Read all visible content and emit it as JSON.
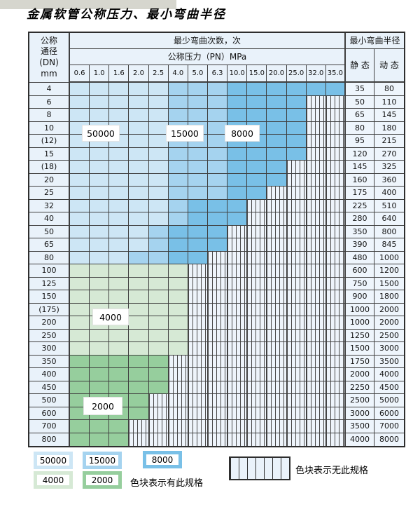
{
  "title": "金属软管公称压力、最小弯曲半径",
  "table": {
    "header": {
      "dn_lines": [
        "公称",
        "通径",
        "(DN)",
        "mm"
      ],
      "bend_cycles": "最少弯曲次数，次",
      "pressure": "公称压力（PN）MPa",
      "pressures": [
        "0.6",
        "1.0",
        "1.6",
        "2.0",
        "2.5",
        "4.0",
        "5.0",
        "6.3",
        "10.0",
        "15.0",
        "20.0",
        "25.0",
        "32.0",
        "35.0"
      ],
      "radius": "最小弯曲半径",
      "static_label": "静 态",
      "dynamic_label": "动 态"
    },
    "rows": [
      {
        "dn": "4",
        "static": "35",
        "dynamic": "80",
        "zone": "blue",
        "ext": 14,
        "light": 5,
        "med": 8
      },
      {
        "dn": "6",
        "static": "50",
        "dynamic": "110",
        "zone": "blue",
        "ext": 12,
        "light": 5,
        "med": 8
      },
      {
        "dn": "8",
        "static": "65",
        "dynamic": "145",
        "zone": "blue",
        "ext": 12,
        "light": 5,
        "med": 8
      },
      {
        "dn": "10",
        "static": "80",
        "dynamic": "180",
        "zone": "blue",
        "ext": 12,
        "light": 5,
        "med": 8
      },
      {
        "dn": "(12)",
        "static": "95",
        "dynamic": "215",
        "zone": "blue",
        "ext": 12,
        "light": 5,
        "med": 8
      },
      {
        "dn": "15",
        "static": "120",
        "dynamic": "270",
        "zone": "blue",
        "ext": 12,
        "light": 5,
        "med": 8
      },
      {
        "dn": "(18)",
        "static": "145",
        "dynamic": "325",
        "zone": "blue",
        "ext": 11,
        "light": 5,
        "med": 8
      },
      {
        "dn": "20",
        "static": "160",
        "dynamic": "360",
        "zone": "blue",
        "ext": 11,
        "light": 5,
        "med": 8
      },
      {
        "dn": "25",
        "static": "175",
        "dynamic": "400",
        "zone": "blue",
        "ext": 10,
        "light": 5,
        "med": 8
      },
      {
        "dn": "32",
        "static": "225",
        "dynamic": "510",
        "zone": "blue",
        "ext": 9,
        "light": 5,
        "med": 6
      },
      {
        "dn": "40",
        "static": "280",
        "dynamic": "640",
        "zone": "blue",
        "ext": 9,
        "light": 5,
        "med": 6
      },
      {
        "dn": "50",
        "static": "350",
        "dynamic": "800",
        "zone": "blue",
        "ext": 8,
        "light": 4,
        "med": 5
      },
      {
        "dn": "65",
        "static": "390",
        "dynamic": "845",
        "zone": "blue",
        "ext": 8,
        "light": 4,
        "med": 5
      },
      {
        "dn": "80",
        "static": "480",
        "dynamic": "1000",
        "zone": "blue",
        "ext": 7,
        "light": 3,
        "med": 5
      },
      {
        "dn": "100",
        "static": "600",
        "dynamic": "1200",
        "zone": "green-light",
        "ext": 6
      },
      {
        "dn": "125",
        "static": "750",
        "dynamic": "1500",
        "zone": "green-light",
        "ext": 6
      },
      {
        "dn": "150",
        "static": "900",
        "dynamic": "1800",
        "zone": "green-light",
        "ext": 6
      },
      {
        "dn": "(175)",
        "static": "1000",
        "dynamic": "2000",
        "zone": "green-light",
        "ext": 6
      },
      {
        "dn": "200",
        "static": "1000",
        "dynamic": "2000",
        "zone": "green-light",
        "ext": 6
      },
      {
        "dn": "250",
        "static": "1250",
        "dynamic": "2500",
        "zone": "green-light",
        "ext": 6
      },
      {
        "dn": "300",
        "static": "1500",
        "dynamic": "3000",
        "zone": "green-light",
        "ext": 6
      },
      {
        "dn": "350",
        "static": "1750",
        "dynamic": "3500",
        "zone": "green-dark",
        "ext": 5
      },
      {
        "dn": "400",
        "static": "2000",
        "dynamic": "4000",
        "zone": "green-dark",
        "ext": 5
      },
      {
        "dn": "450",
        "static": "2250",
        "dynamic": "4500",
        "zone": "green-dark",
        "ext": 5
      },
      {
        "dn": "500",
        "static": "2500",
        "dynamic": "5000",
        "zone": "green-dark",
        "ext": 4
      },
      {
        "dn": "600",
        "static": "3000",
        "dynamic": "6000",
        "zone": "green-dark",
        "ext": 4
      },
      {
        "dn": "700",
        "static": "3500",
        "dynamic": "7000",
        "zone": "green-dark",
        "ext": 3
      },
      {
        "dn": "800",
        "static": "4000",
        "dynamic": "8000",
        "zone": "green-dark",
        "ext": 3
      }
    ]
  },
  "overlay_labels": [
    "50000",
    "15000",
    "8000",
    "4000",
    "2000"
  ],
  "legend": {
    "items": [
      {
        "label": "50000",
        "type": "blue-light"
      },
      {
        "label": "15000",
        "type": "blue-med"
      },
      {
        "label": "8000",
        "type": "blue-dark"
      },
      {
        "label": "4000",
        "type": "green-light"
      },
      {
        "label": "2000",
        "type": "green-dark"
      }
    ],
    "has_spec": "色块表示有此规格",
    "no_spec": "色块表示无此规格"
  },
  "colors": {
    "blue_light": "#cde6f5",
    "blue_med": "#a5d3ef",
    "blue_dark": "#79c0e7",
    "green_light": "#d6e9d5",
    "green_dark": "#96ce9d",
    "hatch_bg": "#eef4fb",
    "header_bg": "#e9f2fa",
    "grid_line": "#3f3f3f"
  }
}
